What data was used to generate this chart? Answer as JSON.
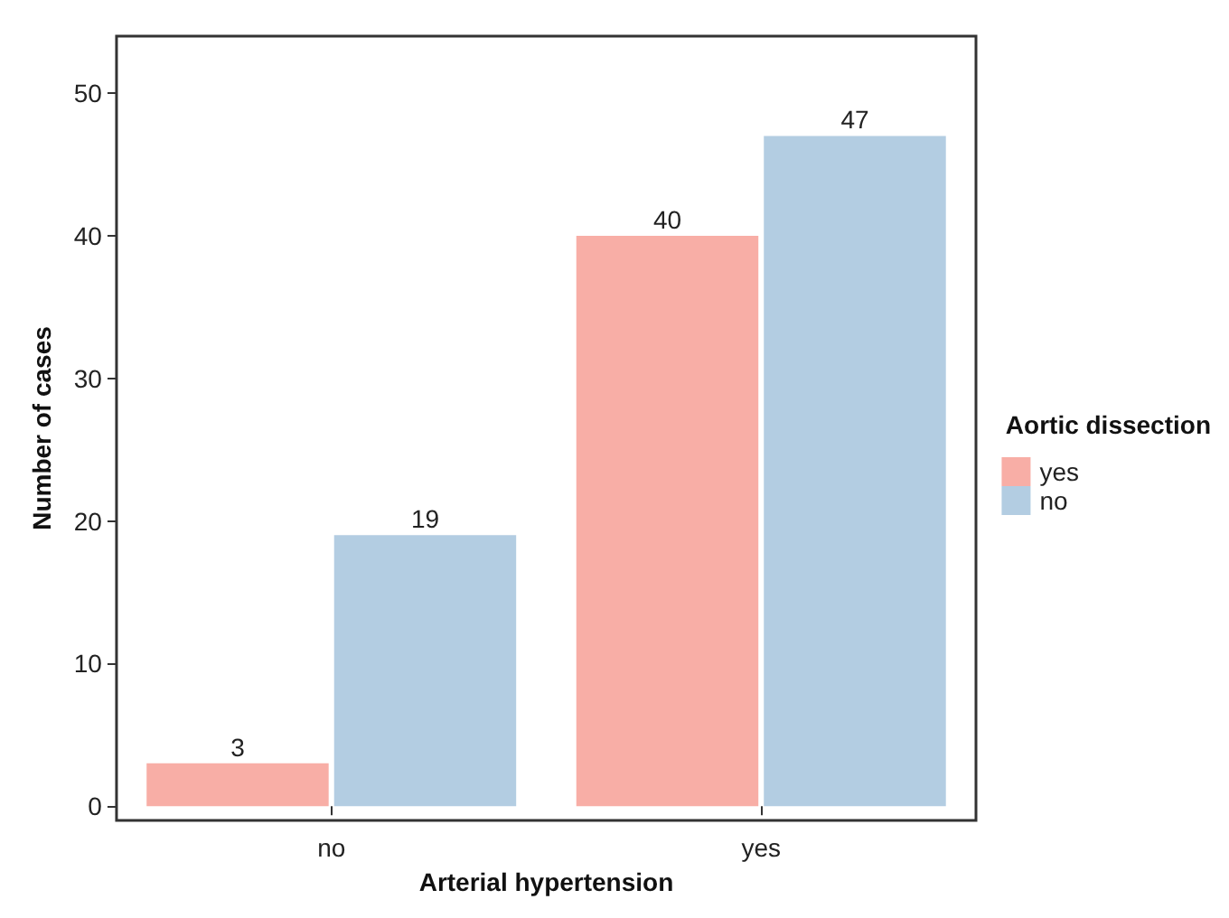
{
  "chart_data": {
    "type": "bar",
    "xlabel": "Arterial hypertension",
    "ylabel": "Number of cases",
    "legend_title": "Aortic dissection",
    "categories": [
      "no",
      "yes"
    ],
    "series": [
      {
        "name": "yes",
        "color": "#f8aea6",
        "values": [
          3,
          40
        ]
      },
      {
        "name": "no",
        "color": "#b3cde2",
        "values": [
          19,
          47
        ]
      }
    ],
    "ylim": [
      -1,
      54
    ],
    "yticks": [
      0,
      10,
      20,
      30,
      40,
      50
    ],
    "grid": false,
    "legend": "right",
    "data_labels": true
  }
}
